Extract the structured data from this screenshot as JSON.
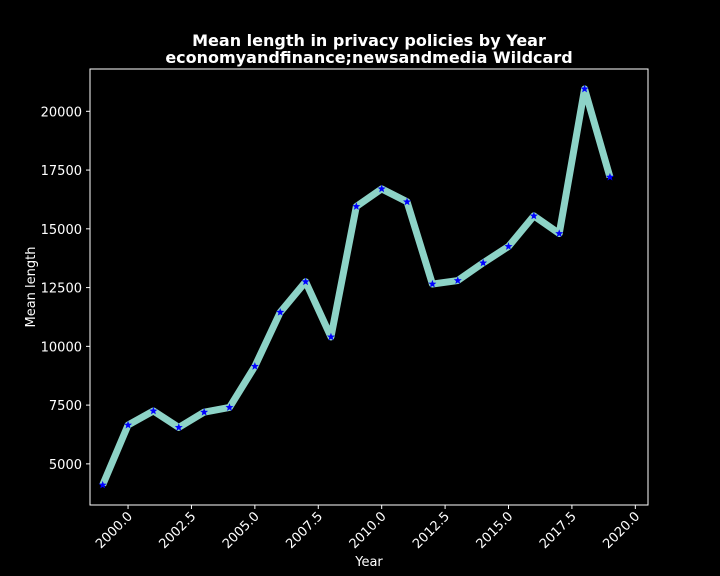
{
  "chart_data": {
    "type": "line",
    "title": "Mean length in privacy policies by Year",
    "subtitle": "economyandfinance;newsandmedia Wildcard",
    "xlabel": "Year",
    "ylabel": "Mean length",
    "xlim": [
      1998.5,
      2020.5
    ],
    "ylim": [
      3250,
      21800
    ],
    "x_ticks": [
      "2000.0",
      "2002.5",
      "2005.0",
      "2007.5",
      "2010.0",
      "2012.5",
      "2015.0",
      "2017.5",
      "2020.0"
    ],
    "y_ticks": [
      "5000",
      "7500",
      "10000",
      "12500",
      "15000",
      "17500",
      "20000"
    ],
    "grid": false,
    "line_color": "#8dd3c7",
    "marker_color": "#0000ff",
    "marker": "star",
    "series": [
      {
        "x": [
          1999,
          2000,
          2001,
          2002,
          2003,
          2004,
          2005,
          2006,
          2007,
          2008,
          2009,
          2010,
          2011,
          2012,
          2013,
          2014,
          2015,
          2016,
          2017,
          2018,
          2019
        ],
        "values": [
          4100,
          6650,
          7250,
          6550,
          7200,
          7400,
          9150,
          11450,
          12750,
          10400,
          15950,
          16700,
          16150,
          12650,
          12800,
          13550,
          14250,
          15550,
          14800,
          20950,
          17200
        ]
      }
    ]
  }
}
